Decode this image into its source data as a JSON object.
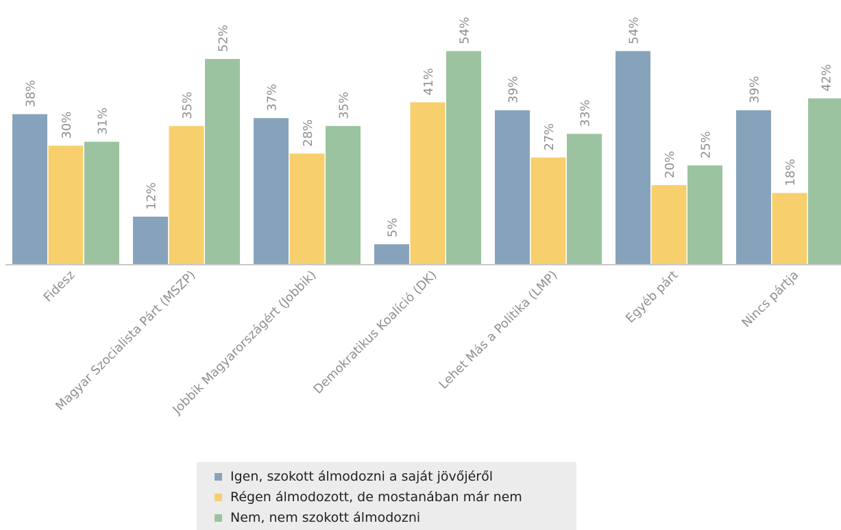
{
  "colors": {
    "series": [
      "#87a3bc",
      "#f7cf6c",
      "#9cc39f"
    ],
    "axis": "#c8c8c8",
    "label_text": "#8f8f8f"
  },
  "chart_data": {
    "type": "bar",
    "title": "",
    "xlabel": "",
    "ylabel": "",
    "ylim": [
      0,
      54
    ],
    "grid": false,
    "legend_position": "bottom",
    "value_format": "percent",
    "categories": [
      "Fidesz",
      "Magyar Szocialista Párt (MSZP)",
      "Jobbik Magyarországért (Jobbik)",
      "Demokratikus Koalíció (DK)",
      "Lehet Más a Politika (LMP)",
      "Egyéb párt",
      "Nincs pártja"
    ],
    "series": [
      {
        "name": "Igen, szokott álmodozni a saját jövőjéről",
        "values": [
          38,
          12,
          37,
          5,
          39,
          54,
          39
        ]
      },
      {
        "name": "Régen álmodozott, de mostanában már nem",
        "values": [
          30,
          35,
          28,
          41,
          27,
          20,
          18
        ]
      },
      {
        "name": "Nem, nem szokott álmodozni",
        "values": [
          31,
          52,
          35,
          54,
          33,
          25,
          42
        ]
      }
    ]
  }
}
